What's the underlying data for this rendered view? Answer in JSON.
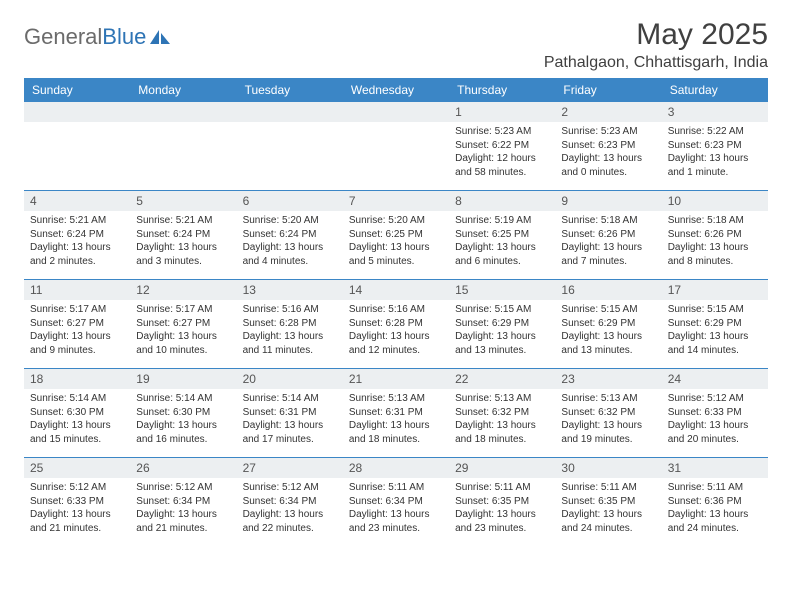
{
  "brand": {
    "part1": "General",
    "part2": "Blue"
  },
  "title": "May 2025",
  "location": "Pathalgaon, Chhattisgarh, India",
  "colors": {
    "header_bg": "#3b86c6",
    "header_text": "#ffffff",
    "daynum_bg": "#eceff1",
    "rule": "#3b86c6",
    "brand_gray": "#6b6b6b",
    "brand_blue": "#2e74b5"
  },
  "dayNames": [
    "Sunday",
    "Monday",
    "Tuesday",
    "Wednesday",
    "Thursday",
    "Friday",
    "Saturday"
  ],
  "weeks": [
    [
      null,
      null,
      null,
      null,
      {
        "n": "1",
        "sr": "5:23 AM",
        "ss": "6:22 PM",
        "dl": "12 hours and 58 minutes."
      },
      {
        "n": "2",
        "sr": "5:23 AM",
        "ss": "6:23 PM",
        "dl": "13 hours and 0 minutes."
      },
      {
        "n": "3",
        "sr": "5:22 AM",
        "ss": "6:23 PM",
        "dl": "13 hours and 1 minute."
      }
    ],
    [
      {
        "n": "4",
        "sr": "5:21 AM",
        "ss": "6:24 PM",
        "dl": "13 hours and 2 minutes."
      },
      {
        "n": "5",
        "sr": "5:21 AM",
        "ss": "6:24 PM",
        "dl": "13 hours and 3 minutes."
      },
      {
        "n": "6",
        "sr": "5:20 AM",
        "ss": "6:24 PM",
        "dl": "13 hours and 4 minutes."
      },
      {
        "n": "7",
        "sr": "5:20 AM",
        "ss": "6:25 PM",
        "dl": "13 hours and 5 minutes."
      },
      {
        "n": "8",
        "sr": "5:19 AM",
        "ss": "6:25 PM",
        "dl": "13 hours and 6 minutes."
      },
      {
        "n": "9",
        "sr": "5:18 AM",
        "ss": "6:26 PM",
        "dl": "13 hours and 7 minutes."
      },
      {
        "n": "10",
        "sr": "5:18 AM",
        "ss": "6:26 PM",
        "dl": "13 hours and 8 minutes."
      }
    ],
    [
      {
        "n": "11",
        "sr": "5:17 AM",
        "ss": "6:27 PM",
        "dl": "13 hours and 9 minutes."
      },
      {
        "n": "12",
        "sr": "5:17 AM",
        "ss": "6:27 PM",
        "dl": "13 hours and 10 minutes."
      },
      {
        "n": "13",
        "sr": "5:16 AM",
        "ss": "6:28 PM",
        "dl": "13 hours and 11 minutes."
      },
      {
        "n": "14",
        "sr": "5:16 AM",
        "ss": "6:28 PM",
        "dl": "13 hours and 12 minutes."
      },
      {
        "n": "15",
        "sr": "5:15 AM",
        "ss": "6:29 PM",
        "dl": "13 hours and 13 minutes."
      },
      {
        "n": "16",
        "sr": "5:15 AM",
        "ss": "6:29 PM",
        "dl": "13 hours and 13 minutes."
      },
      {
        "n": "17",
        "sr": "5:15 AM",
        "ss": "6:29 PM",
        "dl": "13 hours and 14 minutes."
      }
    ],
    [
      {
        "n": "18",
        "sr": "5:14 AM",
        "ss": "6:30 PM",
        "dl": "13 hours and 15 minutes."
      },
      {
        "n": "19",
        "sr": "5:14 AM",
        "ss": "6:30 PM",
        "dl": "13 hours and 16 minutes."
      },
      {
        "n": "20",
        "sr": "5:14 AM",
        "ss": "6:31 PM",
        "dl": "13 hours and 17 minutes."
      },
      {
        "n": "21",
        "sr": "5:13 AM",
        "ss": "6:31 PM",
        "dl": "13 hours and 18 minutes."
      },
      {
        "n": "22",
        "sr": "5:13 AM",
        "ss": "6:32 PM",
        "dl": "13 hours and 18 minutes."
      },
      {
        "n": "23",
        "sr": "5:13 AM",
        "ss": "6:32 PM",
        "dl": "13 hours and 19 minutes."
      },
      {
        "n": "24",
        "sr": "5:12 AM",
        "ss": "6:33 PM",
        "dl": "13 hours and 20 minutes."
      }
    ],
    [
      {
        "n": "25",
        "sr": "5:12 AM",
        "ss": "6:33 PM",
        "dl": "13 hours and 21 minutes."
      },
      {
        "n": "26",
        "sr": "5:12 AM",
        "ss": "6:34 PM",
        "dl": "13 hours and 21 minutes."
      },
      {
        "n": "27",
        "sr": "5:12 AM",
        "ss": "6:34 PM",
        "dl": "13 hours and 22 minutes."
      },
      {
        "n": "28",
        "sr": "5:11 AM",
        "ss": "6:34 PM",
        "dl": "13 hours and 23 minutes."
      },
      {
        "n": "29",
        "sr": "5:11 AM",
        "ss": "6:35 PM",
        "dl": "13 hours and 23 minutes."
      },
      {
        "n": "30",
        "sr": "5:11 AM",
        "ss": "6:35 PM",
        "dl": "13 hours and 24 minutes."
      },
      {
        "n": "31",
        "sr": "5:11 AM",
        "ss": "6:36 PM",
        "dl": "13 hours and 24 minutes."
      }
    ]
  ],
  "labels": {
    "sunrise": "Sunrise: ",
    "sunset": "Sunset: ",
    "daylight": "Daylight: "
  }
}
